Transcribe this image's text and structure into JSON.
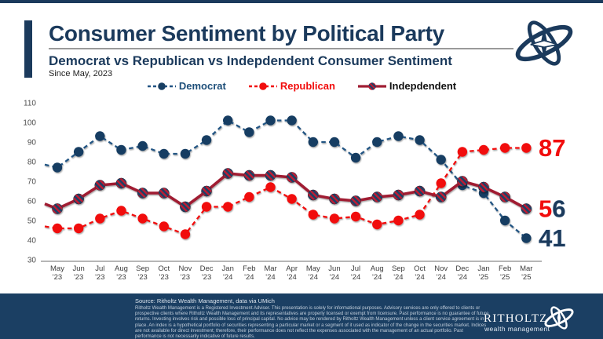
{
  "header": {
    "title": "Consumer Sentiment by Political Party",
    "subtitle": "Democrat vs Republican vs Indepdendent Consumer Sentiment",
    "since": "Since May, 2023"
  },
  "colors": {
    "navy": "#1b3a5c",
    "democrat_line": "#225483",
    "democrat_marker": "#173e62",
    "republican_red": "#f10d0d",
    "independent_line": "#a01d33",
    "stripe_red": "#c01a31",
    "stripe_navy": "#1c4066",
    "footer_bg": "#1b3f63"
  },
  "legend": {
    "items": [
      {
        "label": "Democrat",
        "style": "dashed",
        "line_color": "#225483",
        "marker": "solid",
        "marker_color": "#173e62",
        "label_color": "#1d4e79"
      },
      {
        "label": "Republican",
        "style": "dashed",
        "line_color": "#f10d0d",
        "marker": "solid",
        "marker_color": "#f10d0d",
        "label_color": "#f10d0d"
      },
      {
        "label": "Indepdendent",
        "style": "solid",
        "line_color": "#a01d33",
        "marker": "striped",
        "marker_color": "striped",
        "label_color": "#111111"
      }
    ]
  },
  "chart_data": {
    "type": "line",
    "title": "Consumer Sentiment by Political Party",
    "subtitle": "Democrat vs Republican vs Indepdendent Consumer Sentiment",
    "xlabel": "",
    "ylabel": "",
    "ylim": [
      30,
      110
    ],
    "grid": false,
    "legend_position": "top",
    "y_ticks": [
      110,
      100,
      90,
      80,
      70,
      60,
      50,
      40,
      30
    ],
    "categories": [
      "May '23",
      "Jun '23",
      "Jul '23",
      "Aug '23",
      "Sep '23",
      "Oct '23",
      "Nov '23",
      "Dec '23",
      "Jan '24",
      "Feb '24",
      "Mar '24",
      "Apr '24",
      "May '24",
      "Jun '24",
      "Jul '24",
      "Aug '24",
      "Sep '24",
      "Oct '24",
      "Nov '24",
      "Dec '24",
      "Jan '25",
      "Feb '25",
      "Mar '25"
    ],
    "series": [
      {
        "name": "Democrat",
        "style": "dashed",
        "line_color": "#225483",
        "marker_color": "#173e62",
        "edge_start_value": 78.5,
        "values": [
          77,
          85,
          93,
          86,
          88,
          84,
          84,
          91,
          101,
          95,
          101,
          101,
          90,
          90,
          82,
          90,
          93,
          91,
          81,
          68,
          64,
          50,
          41
        ]
      },
      {
        "name": "Republican",
        "style": "dashed",
        "line_color": "#f10d0d",
        "marker_color": "#f10d0d",
        "edge_start_value": 47,
        "values": [
          46,
          46,
          51,
          55,
          51,
          47,
          43,
          57,
          57,
          62,
          67,
          61,
          53,
          51,
          52,
          48,
          50,
          53,
          69,
          85,
          86,
          87,
          87
        ]
      },
      {
        "name": "Indepdendent",
        "style": "solid",
        "line_color": "#a01d33",
        "marker_color": "striped",
        "edge_start_value": 58.5,
        "values": [
          56,
          61,
          68,
          69,
          64,
          64,
          57,
          65,
          74,
          73,
          73,
          72,
          63,
          61,
          60,
          62,
          63,
          65,
          62,
          70,
          67,
          62,
          56
        ]
      }
    ],
    "end_labels": [
      {
        "text": "87",
        "value": 87,
        "char_colors": [
          "#f10d0d",
          "#f10d0d"
        ]
      },
      {
        "text": "56",
        "value": 56,
        "char_colors": [
          "#f10d0d",
          "#1b3a5c"
        ]
      },
      {
        "text": "41",
        "value": 41,
        "char_colors": [
          "#1b3a5c",
          "#1b3a5c"
        ]
      }
    ]
  },
  "footer": {
    "source": "Source: Ritholtz Wealth Management, data via UMich",
    "disclaimer": "Ritholtz Wealth Management is a Registered Investment Adviser. This presentation is solely for informational purposes. Advisory services are only offered to clients or prospective clients where Ritholtz Wealth Management and its representatives are properly licensed or exempt from licensure. Past performance is no guarantee of future returns. Investing involves risk and possible loss of principal capital. No advice may be rendered by Ritholtz Wealth Management unless a client service agreement is in place. An index is a hypothetical portfolio of securities representing a particular market or a segment of it used as indicator of the change in the securities market. Indices are not available for direct investment; therefore, their performance does not reflect the expenses associated with the management of an actual portfolio. Past performance is not necessarily indicative of future results.",
    "brand_name": "RITHOLTZ",
    "brand_tagline": "wealth management"
  }
}
